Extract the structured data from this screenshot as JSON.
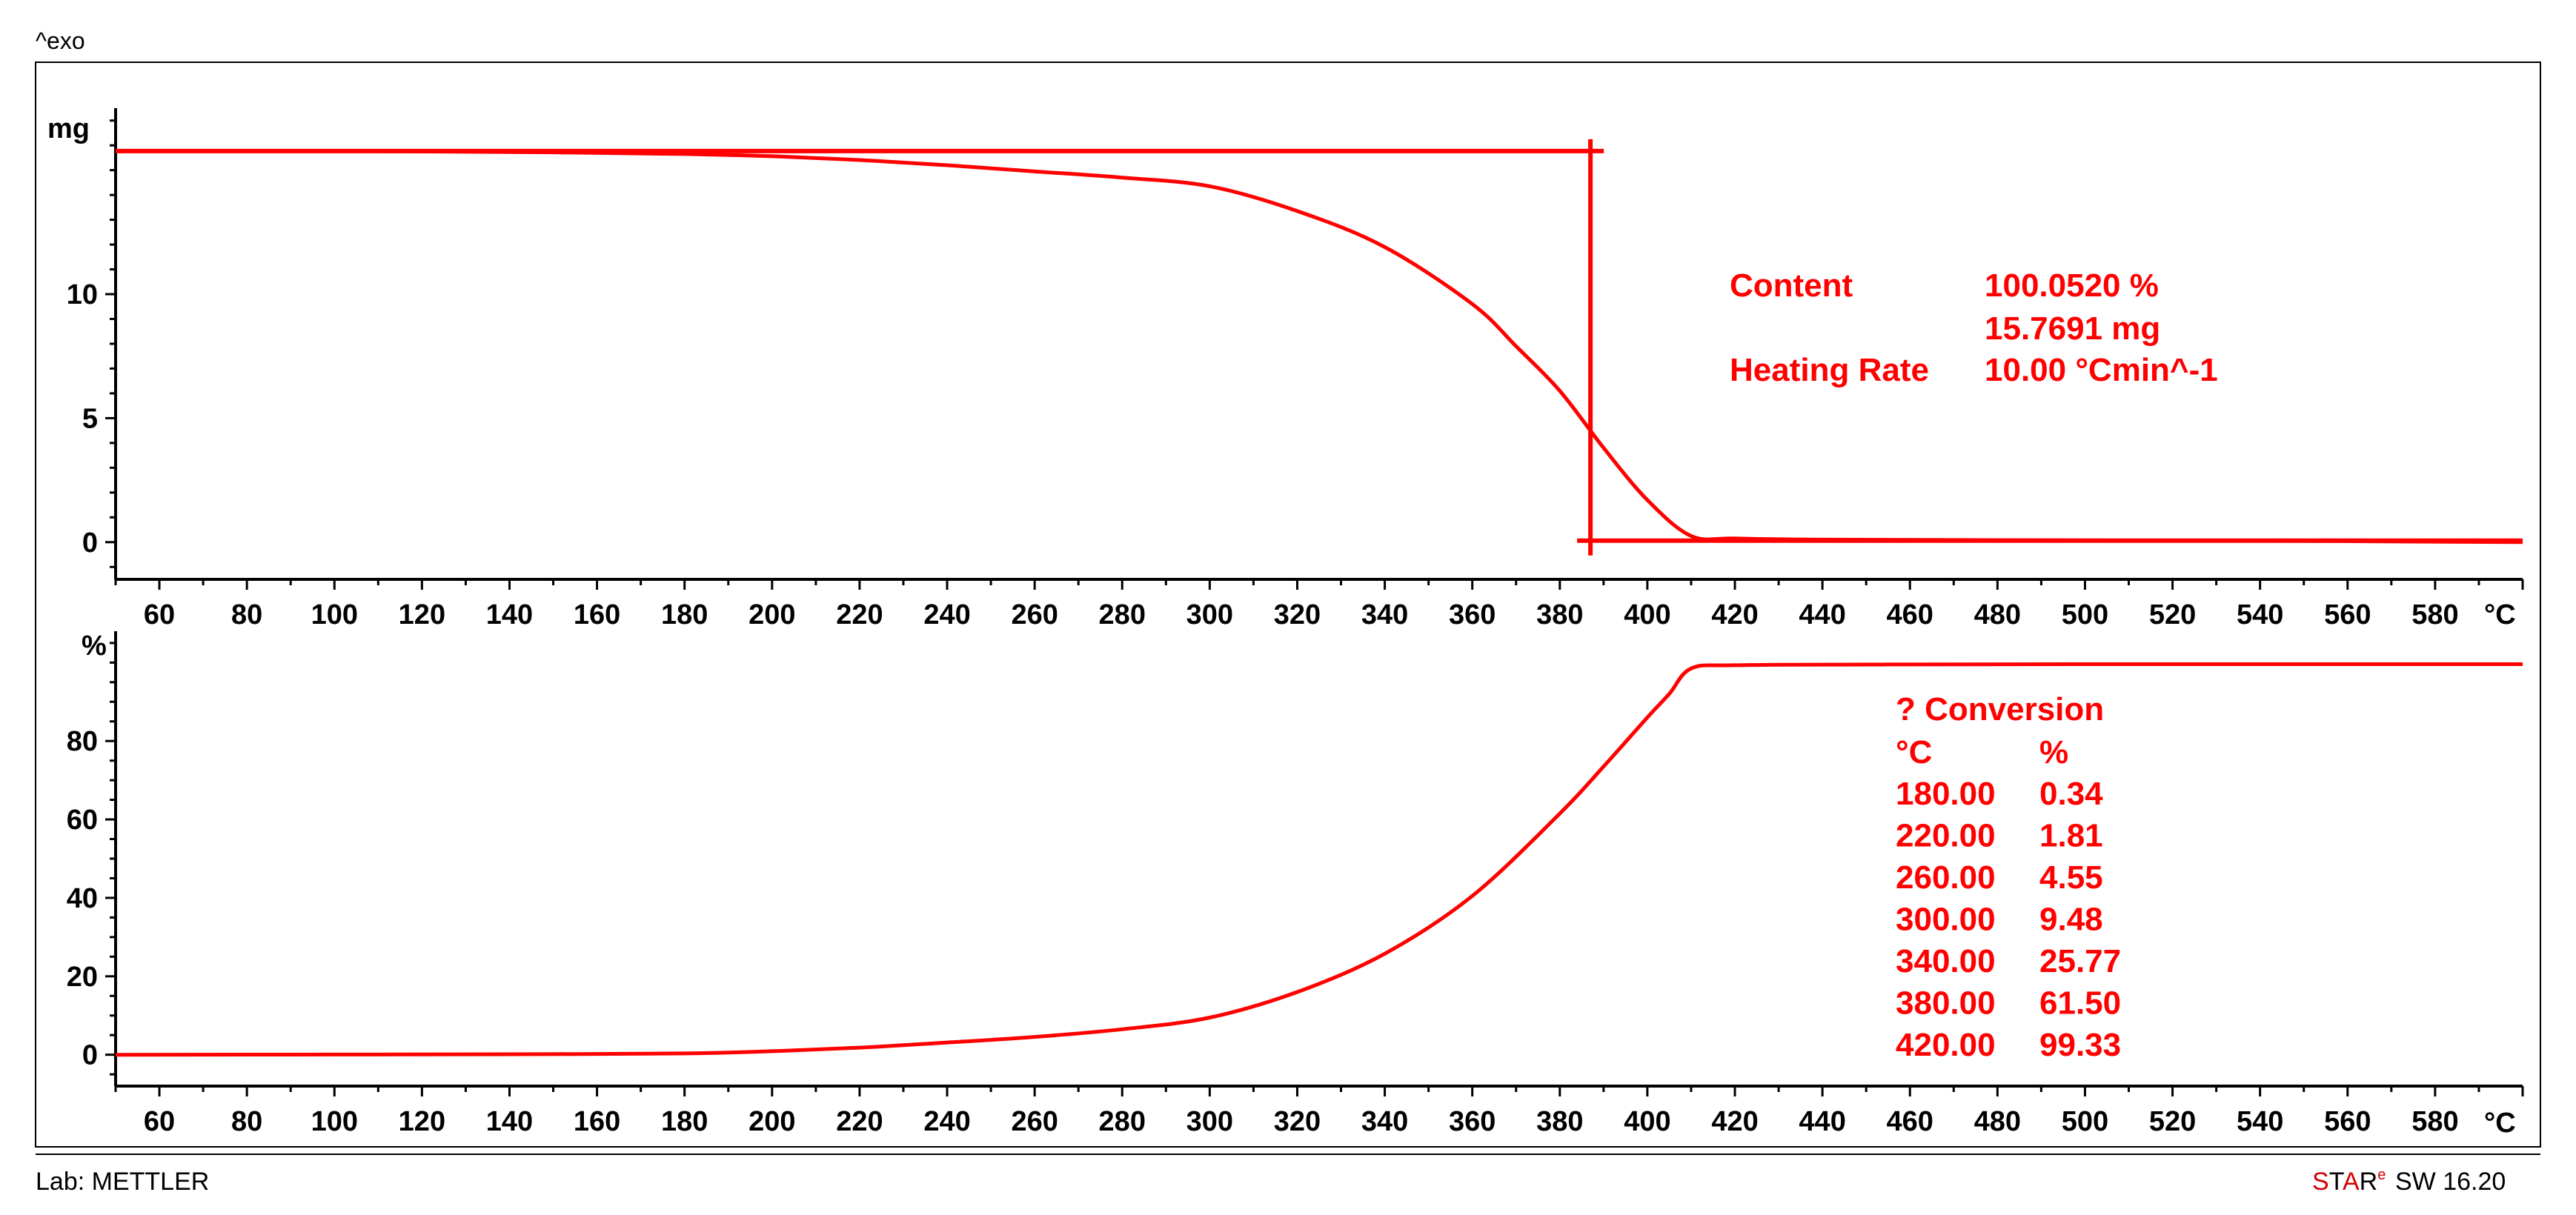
{
  "header": {
    "exo_label": "^exo"
  },
  "footer": {
    "lab_label": "Lab: METTLER",
    "software_label": "SW 16.20"
  },
  "colors": {
    "curve": "#ff0000",
    "axis": "#000000"
  },
  "chart_data": [
    {
      "type": "line",
      "ylabel": "mg",
      "xlabel": "°C",
      "xlim": [
        50,
        600
      ],
      "ylim": [
        -1.5,
        17.5
      ],
      "x_ticks": [
        60,
        80,
        100,
        120,
        140,
        160,
        180,
        200,
        220,
        240,
        260,
        280,
        300,
        320,
        340,
        360,
        380,
        400,
        420,
        440,
        460,
        480,
        500,
        520,
        540,
        560,
        580
      ],
      "y_ticks": [
        0,
        5,
        10
      ],
      "series": [
        {
          "x": [
            50,
            100,
            150,
            180,
            200,
            220,
            240,
            260,
            280,
            300,
            320,
            340,
            360,
            370,
            380,
            390,
            400,
            410,
            420,
            440,
            480,
            550,
            600
          ],
          "y": [
            15.77,
            15.77,
            15.72,
            15.65,
            15.56,
            15.41,
            15.2,
            14.95,
            14.7,
            14.35,
            13.35,
            11.9,
            9.6,
            7.9,
            6.1,
            3.8,
            1.7,
            0.25,
            0.15,
            0.1,
            0.08,
            0.05,
            0.0
          ]
        }
      ],
      "annotations": {
        "rows": [
          {
            "label": "Content",
            "value": "100.0520 %"
          },
          {
            "label": "",
            "value": "15.7691 mg"
          },
          {
            "label": "Heating Rate",
            "value": "10.00 °Cmin^-1"
          }
        ],
        "step_start_level": 15.77,
        "step_end_level": 0.0,
        "step_x": 387
      }
    },
    {
      "type": "line",
      "ylabel": "%",
      "xlabel": "°C",
      "xlim": [
        50,
        600
      ],
      "ylim": [
        -8,
        108
      ],
      "x_ticks": [
        60,
        80,
        100,
        120,
        140,
        160,
        180,
        200,
        220,
        240,
        260,
        280,
        300,
        320,
        340,
        360,
        380,
        400,
        420,
        440,
        460,
        480,
        500,
        520,
        540,
        560,
        580
      ],
      "y_ticks": [
        0,
        20,
        40,
        60,
        80
      ],
      "series": [
        {
          "x": [
            50,
            100,
            150,
            180,
            200,
            220,
            240,
            260,
            280,
            300,
            320,
            340,
            360,
            380,
            390,
            400,
            405,
            410,
            420,
            450,
            500,
            600
          ],
          "y": [
            0,
            0.05,
            0.15,
            0.34,
            0.9,
            1.81,
            3.1,
            4.55,
            6.5,
            9.48,
            16.0,
            25.77,
            40.5,
            61.5,
            73.5,
            86.0,
            92.0,
            98.5,
            99.33,
            99.5,
            99.6,
            99.6
          ]
        }
      ],
      "annotations": {
        "title": "? Conversion",
        "col_headers": [
          "°C",
          "%"
        ],
        "rows": [
          [
            "180.00",
            "0.34"
          ],
          [
            "220.00",
            "1.81"
          ],
          [
            "260.00",
            "4.55"
          ],
          [
            "300.00",
            "9.48"
          ],
          [
            "340.00",
            "25.77"
          ],
          [
            "380.00",
            "61.50"
          ],
          [
            "420.00",
            "99.33"
          ]
        ]
      }
    }
  ]
}
